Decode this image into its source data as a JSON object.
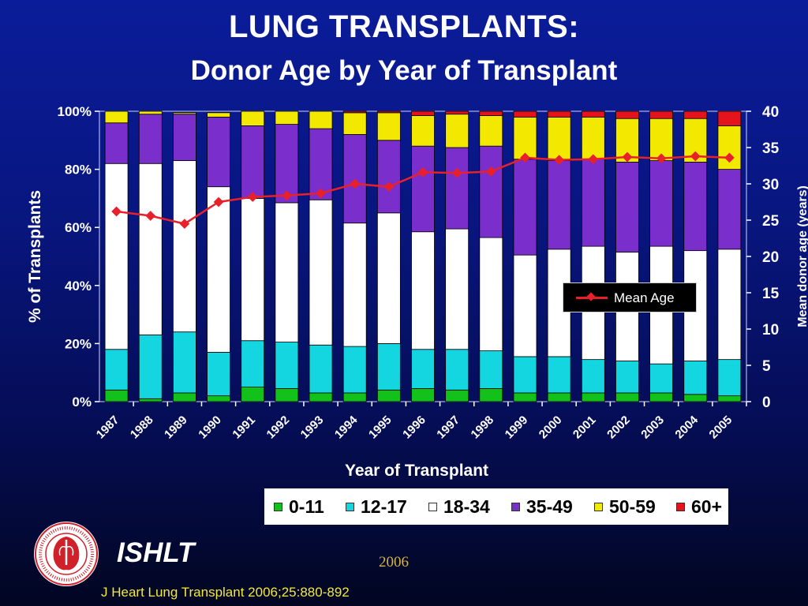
{
  "title": "LUNG TRANSPLANTS:",
  "subtitle": "Donor Age by Year of Transplant",
  "brand": "ISHLT",
  "year_label": "2006",
  "citation": "J Heart Lung Transplant 2006;25:880-892",
  "logo_ring_text": "INTERNATIONAL SOCIETY FOR HEART & LUNG TRANSPLANTATION",
  "colors": {
    "0-11": "#12c21a",
    "12-17": "#14d6e0",
    "18-34": "#ffffff",
    "35-49": "#7a2fcc",
    "50-59": "#f2e800",
    "60+": "#e5131b",
    "mean_line": "#e8202a"
  },
  "chart_data": {
    "type": "bar",
    "stacked": true,
    "title": "",
    "xlabel": "Year of Transplant",
    "ylabel": "% of Transplants",
    "y2label": "Mean donor age (years)",
    "ylim": [
      0,
      100
    ],
    "y2lim": [
      0,
      40
    ],
    "y_ticks": [
      "0%",
      "20%",
      "40%",
      "60%",
      "80%",
      "100%"
    ],
    "y2_ticks": [
      "0",
      "5",
      "10",
      "15",
      "20",
      "25",
      "30",
      "35",
      "40"
    ],
    "legend_position": "bottom",
    "categories": [
      "1987",
      "1988",
      "1989",
      "1990",
      "1991",
      "1992",
      "1993",
      "1994",
      "1995",
      "1996",
      "1997",
      "1998",
      "1999",
      "2000",
      "2001",
      "2002",
      "2003",
      "2004",
      "2005"
    ],
    "series": [
      {
        "name": "0-11",
        "values": [
          4,
          1,
          3,
          2,
          5,
          4.5,
          3,
          3,
          4,
          4.5,
          4,
          4.5,
          3,
          3,
          3,
          3,
          3,
          2.5,
          2
        ]
      },
      {
        "name": "12-17",
        "values": [
          14,
          22,
          21,
          15,
          16,
          16,
          16.5,
          16,
          16,
          13.5,
          14,
          13,
          12.5,
          12.5,
          11.5,
          11,
          10,
          11.5,
          12.5
        ]
      },
      {
        "name": "18-34",
        "values": [
          64,
          59,
          59,
          57,
          49,
          48,
          50,
          42.5,
          45,
          40.5,
          41.5,
          39,
          35,
          37,
          39,
          37.5,
          40.5,
          38,
          38
        ]
      },
      {
        "name": "35-49",
        "values": [
          14,
          17,
          16,
          24,
          25,
          27,
          24.5,
          30.5,
          25,
          29.5,
          28,
          31.5,
          33,
          30.5,
          30,
          31,
          29.5,
          30.5,
          27.5
        ]
      },
      {
        "name": "50-59",
        "values": [
          4,
          1,
          0.5,
          1.5,
          5,
          4.5,
          6,
          7.5,
          9.5,
          10.5,
          11.5,
          10.5,
          14.5,
          15,
          14.5,
          15,
          14.5,
          15,
          15
        ]
      },
      {
        "name": "60+",
        "values": [
          0,
          0,
          0,
          0,
          0,
          0,
          0,
          0.5,
          0.5,
          1.5,
          1,
          1.5,
          2,
          2,
          2,
          2.5,
          2.5,
          2.5,
          5
        ]
      }
    ],
    "line_series": {
      "name": "Mean Age",
      "axis": "y2",
      "values": [
        26.2,
        25.6,
        24.5,
        27.5,
        28.2,
        28.4,
        28.7,
        30,
        29.6,
        31.6,
        31.5,
        31.7,
        33.6,
        33.3,
        33.4,
        33.7,
        33.5,
        33.8,
        33.6
      ]
    }
  }
}
